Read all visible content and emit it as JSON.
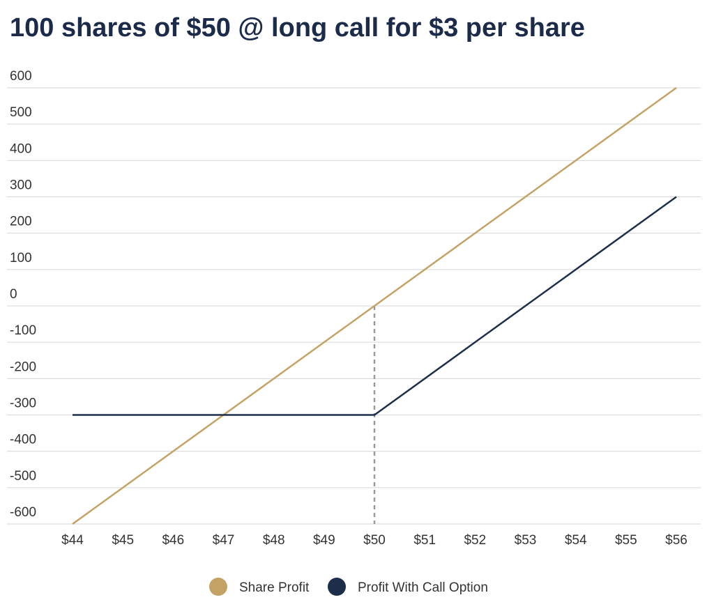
{
  "chart_data": {
    "type": "line",
    "title": "100 shares of $50 @ long call for $3 per share",
    "categories": [
      "$44",
      "$45",
      "$46",
      "$47",
      "$48",
      "$49",
      "$50",
      "$51",
      "$52",
      "$53",
      "$54",
      "$55",
      "$56"
    ],
    "series": [
      {
        "name": "Share Profit",
        "color": "#c4a265",
        "values": [
          -600,
          -500,
          -400,
          -300,
          -200,
          -100,
          0,
          100,
          200,
          300,
          400,
          500,
          600
        ]
      },
      {
        "name": "Profit With Call Option",
        "color": "#1c2e4a",
        "values": [
          -300,
          -300,
          -300,
          -300,
          -300,
          -300,
          -300,
          -200,
          -100,
          0,
          100,
          200,
          300
        ]
      }
    ],
    "ylim": [
      -600,
      600
    ],
    "yticks": [
      600,
      500,
      400,
      300,
      200,
      100,
      0,
      -100,
      -200,
      -300,
      -400,
      -500,
      -600
    ],
    "grid": true,
    "vline": {
      "at": "$50",
      "from": 0,
      "color": "#999999"
    }
  }
}
